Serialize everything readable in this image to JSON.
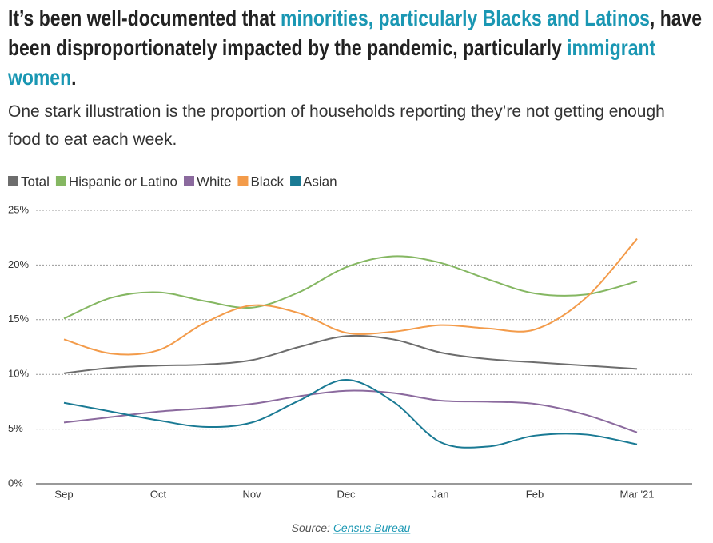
{
  "chart_data": {
    "type": "line",
    "title": [
      {
        "text": "It’s been well-documented that ",
        "highlight": false
      },
      {
        "text": "minorities, particularly Blacks and Latinos",
        "highlight": true
      },
      {
        "text": ", have been disproportionately impacted by the pandemic, particularly ",
        "highlight": false
      },
      {
        "text": "immigrant women",
        "highlight": true
      },
      {
        "text": ".",
        "highlight": false
      }
    ],
    "highlight_color": "#1a97b3",
    "subtitle": "One stark illustration is the proportion of households reporting they’re not getting enough food to eat each week.",
    "categories": [
      "Sep",
      null,
      "Oct",
      null,
      "Nov",
      null,
      "Dec",
      null,
      "Jan",
      null,
      "Feb",
      null,
      "Mar '21"
    ],
    "series": [
      {
        "name": "Total",
        "color": "#6d6d6d",
        "values": [
          10.1,
          10.6,
          10.8,
          10.9,
          11.3,
          12.5,
          13.5,
          13.2,
          12.0,
          11.4,
          11.1,
          10.8,
          10.5
        ]
      },
      {
        "name": "Hispanic or Latino",
        "color": "#85b762",
        "values": [
          15.1,
          17.0,
          17.5,
          16.7,
          16.1,
          17.5,
          19.8,
          20.8,
          20.2,
          18.7,
          17.4,
          17.3,
          18.5
        ]
      },
      {
        "name": "White",
        "color": "#8b6a9e",
        "values": [
          5.6,
          6.1,
          6.6,
          6.9,
          7.3,
          8.0,
          8.5,
          8.3,
          7.6,
          7.5,
          7.3,
          6.3,
          4.7
        ]
      },
      {
        "name": "Black",
        "color": "#f39b4a",
        "values": [
          13.2,
          11.9,
          12.2,
          14.7,
          16.3,
          15.6,
          13.8,
          13.9,
          14.5,
          14.2,
          14.1,
          17.0,
          22.4
        ]
      },
      {
        "name": "Asian",
        "color": "#1a7a94",
        "values": [
          7.4,
          6.6,
          5.8,
          5.2,
          5.6,
          7.6,
          9.5,
          7.5,
          3.8,
          3.4,
          4.4,
          4.5,
          3.6
        ]
      }
    ],
    "ylim": [
      0,
      25
    ],
    "yticks": [
      {
        "value": 0,
        "label": "0%"
      },
      {
        "value": 5,
        "label": "5%"
      },
      {
        "value": 10,
        "label": "10%"
      },
      {
        "value": 15,
        "label": "15%"
      },
      {
        "value": 20,
        "label": "20%"
      },
      {
        "value": 25,
        "label": "25%"
      }
    ],
    "grid": true,
    "source_label": "Source:",
    "source_link": "Census Bureau"
  }
}
